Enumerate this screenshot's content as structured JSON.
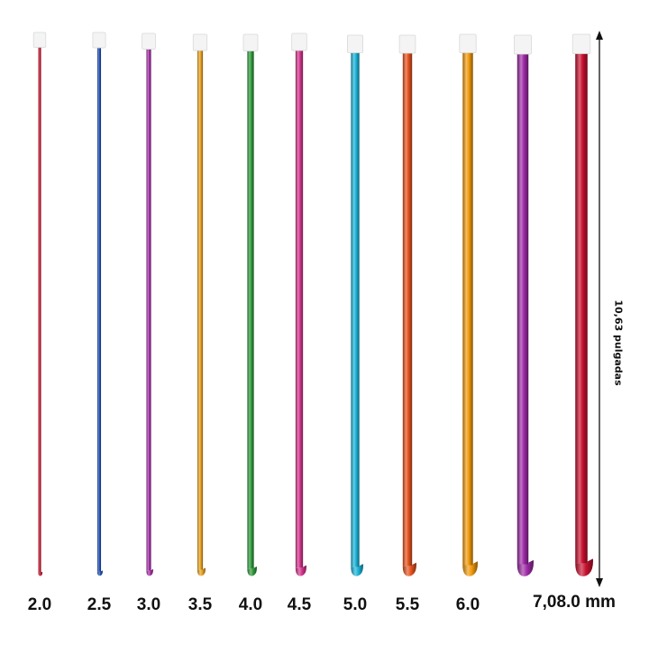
{
  "hooks": [
    {
      "size": "2.0",
      "color": "#c5102a",
      "thickness": 1
    },
    {
      "size": "2.5",
      "color": "#2050b8",
      "thickness": 2
    },
    {
      "size": "3.0",
      "color": "#a52ea8",
      "thickness": 3
    },
    {
      "size": "3.5",
      "color": "#e8a21e",
      "thickness": 4
    },
    {
      "size": "4.0",
      "color": "#2e9a3a",
      "thickness": 5
    },
    {
      "size": "4.5",
      "color": "#d4338c",
      "thickness": 6
    },
    {
      "size": "5.0",
      "color": "#1ab3d9",
      "thickness": 7
    },
    {
      "size": "5.5",
      "color": "#e6521e",
      "thickness": 8
    },
    {
      "size": "6.0",
      "color": "#f29a0c",
      "thickness": 9
    },
    {
      "size": "7,0",
      "color": "#9e2aa6",
      "thickness": 10
    },
    {
      "size": "8.0 mm",
      "color": "#c8102e",
      "thickness": 11
    }
  ],
  "last_label": "7,08.0 mm",
  "length_label": "10,63 pulgadas"
}
